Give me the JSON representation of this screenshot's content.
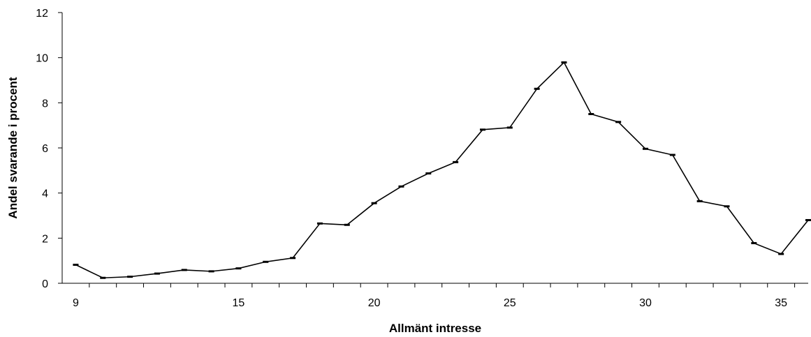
{
  "chart_data": {
    "type": "line",
    "title": "",
    "xlabel": "Allmänt intresse",
    "ylabel": "Andel svarande i procent",
    "xlim": [
      9,
      36
    ],
    "ylim": [
      0,
      12
    ],
    "x_ticks": [
      9,
      15,
      20,
      25,
      30,
      35
    ],
    "y_ticks": [
      0,
      2,
      4,
      6,
      8,
      10,
      12
    ],
    "grid": false,
    "legend": "none",
    "line_color": "#000000",
    "x": [
      9,
      10,
      11,
      12,
      13,
      14,
      15,
      16,
      17,
      18,
      19,
      20,
      21,
      22,
      23,
      24,
      25,
      26,
      27,
      28,
      29,
      30,
      31,
      32,
      33,
      34,
      35,
      36
    ],
    "series": [
      {
        "values": [
          0.82,
          0.24,
          0.29,
          0.43,
          0.59,
          0.53,
          0.66,
          0.95,
          1.12,
          2.65,
          2.59,
          3.55,
          4.29,
          4.87,
          5.37,
          6.81,
          6.9,
          8.62,
          9.79,
          7.5,
          7.15,
          5.96,
          5.69,
          3.64,
          3.41,
          1.78,
          1.3,
          2.8
        ]
      }
    ]
  }
}
